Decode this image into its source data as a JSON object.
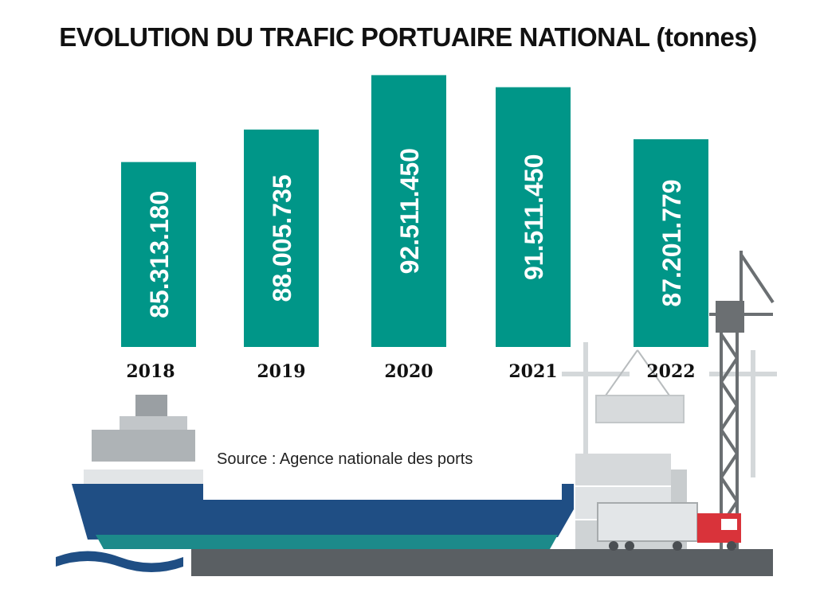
{
  "title": "EVOLUTION DU TRAFIC PORTUAIRE NATIONAL (tonnes)",
  "source": "Source : Agence nationale des ports",
  "colors": {
    "bar": "#009688",
    "bar_text": "#ffffff",
    "title": "#111111",
    "hull": "#1f4e84"
  },
  "chart_data": {
    "type": "bar",
    "title": "EVOLUTION DU TRAFIC PORTUAIRE NATIONAL (tonnes)",
    "xlabel": "",
    "ylabel": "",
    "categories": [
      "2018",
      "2019",
      "2020",
      "2021",
      "2022"
    ],
    "values": [
      85313180,
      88005735,
      92511450,
      91511450,
      87201779
    ],
    "value_labels": [
      "85.313.180",
      "88.005.735",
      "92.511.450",
      "91.511.450",
      "87.201.779"
    ],
    "ylim": [
      70000000,
      93000000
    ],
    "grid": false,
    "legend": "none"
  }
}
